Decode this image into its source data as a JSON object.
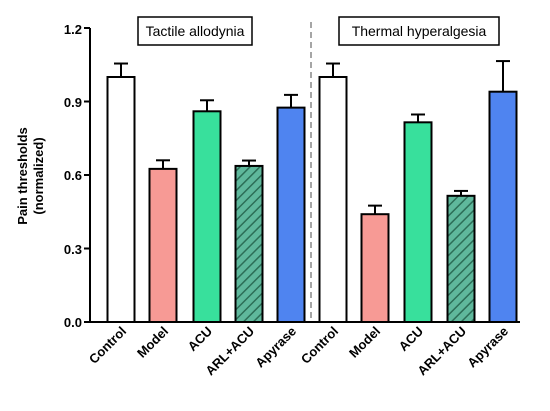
{
  "chart_data": {
    "type": "bar",
    "ylabel_lines": [
      "Pain thresholds",
      "(normalized)"
    ],
    "ylim": [
      0,
      1.2
    ],
    "yticks": [
      "0.0",
      "0.3",
      "0.6",
      "0.9",
      "1.2"
    ],
    "panels": [
      {
        "title": "Tactile allodynia",
        "categories": [
          "Control",
          "Model",
          "ACU",
          "ARL+ACU",
          "Apyrase"
        ],
        "values": [
          1.0,
          0.625,
          0.86,
          0.637,
          0.875
        ],
        "errors": [
          0.055,
          0.035,
          0.045,
          0.022,
          0.052
        ]
      },
      {
        "title": "Thermal hyperalgesia",
        "categories": [
          "Control",
          "Model",
          "ACU",
          "ARL+ACU",
          "Apyrase"
        ],
        "values": [
          1.0,
          0.44,
          0.815,
          0.515,
          0.94
        ],
        "errors": [
          0.055,
          0.035,
          0.032,
          0.02,
          0.125
        ]
      }
    ],
    "bar_colors": [
      "#ffffff",
      "#f79a95",
      "#38e09c",
      "#5fb89c",
      "#4f84f0"
    ],
    "hatched": [
      false,
      false,
      false,
      true,
      false
    ]
  }
}
